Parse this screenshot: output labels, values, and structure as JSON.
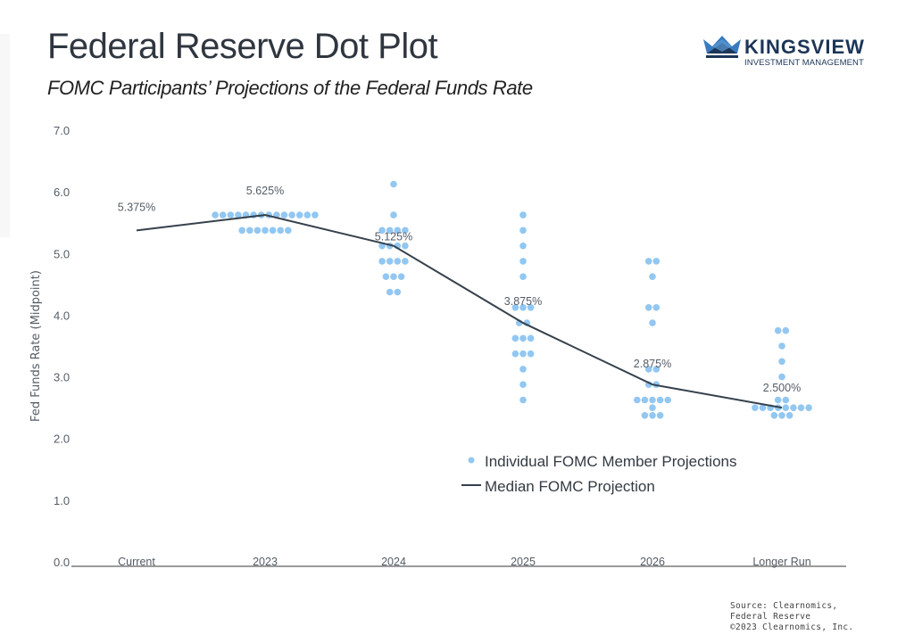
{
  "header": {
    "title": "Federal Reserve Dot Plot",
    "subtitle": "FOMC Participants’ Projections of the Federal Funds Rate"
  },
  "logo": {
    "name": "KINGSVIEW",
    "tagline": "INVESTMENT MANAGEMENT",
    "icon": "crown-icon",
    "colors": {
      "light": "#3a7bbf",
      "dark": "#1d3557"
    }
  },
  "source": {
    "lines": [
      "Source: Clearnomics,",
      "Federal Reserve",
      "©2023 Clearnomics, Inc."
    ]
  },
  "colors": {
    "dot": "#92c7f1",
    "median_line": "#36414d",
    "axis": "#7a7a7a",
    "text": "#555c66"
  },
  "chart_data": {
    "type": "scatter",
    "title": "Federal Reserve Dot Plot",
    "subtitle": "FOMC Participants’ Projections of the Federal Funds Rate",
    "xlabel": "",
    "ylabel": "Fed Funds Rate (Midpoint)",
    "ylim": [
      0,
      7
    ],
    "yticks": [
      "0.0",
      "1.0",
      "2.0",
      "3.0",
      "4.0",
      "5.0",
      "6.0",
      "7.0"
    ],
    "categories": [
      "Current",
      "2023",
      "2024",
      "2025",
      "2026",
      "Longer Run"
    ],
    "grid": false,
    "legend_position": "bottom-right",
    "series": [
      {
        "name": "Individual FOMC Member Projections",
        "kind": "dots",
        "values": [
          [],
          [
            {
              "rate": 5.625,
              "count": 14
            },
            {
              "rate": 5.375,
              "count": 7
            }
          ],
          [
            {
              "rate": 6.125,
              "count": 1
            },
            {
              "rate": 5.625,
              "count": 1
            },
            {
              "rate": 5.375,
              "count": 4
            },
            {
              "rate": 5.125,
              "count": 4
            },
            {
              "rate": 4.875,
              "count": 4
            },
            {
              "rate": 4.625,
              "count": 3
            },
            {
              "rate": 4.375,
              "count": 2
            }
          ],
          [
            {
              "rate": 5.625,
              "count": 1
            },
            {
              "rate": 5.375,
              "count": 1
            },
            {
              "rate": 5.125,
              "count": 1
            },
            {
              "rate": 4.875,
              "count": 1
            },
            {
              "rate": 4.625,
              "count": 1
            },
            {
              "rate": 4.125,
              "count": 3
            },
            {
              "rate": 3.875,
              "count": 2
            },
            {
              "rate": 3.625,
              "count": 3
            },
            {
              "rate": 3.375,
              "count": 3
            },
            {
              "rate": 3.125,
              "count": 1
            },
            {
              "rate": 2.875,
              "count": 1
            },
            {
              "rate": 2.625,
              "count": 1
            }
          ],
          [
            {
              "rate": 4.875,
              "count": 2
            },
            {
              "rate": 4.625,
              "count": 1
            },
            {
              "rate": 4.125,
              "count": 2
            },
            {
              "rate": 3.875,
              "count": 1
            },
            {
              "rate": 3.125,
              "count": 2
            },
            {
              "rate": 2.875,
              "count": 2
            },
            {
              "rate": 2.625,
              "count": 5
            },
            {
              "rate": 2.5,
              "count": 1
            },
            {
              "rate": 2.375,
              "count": 3
            }
          ],
          [
            {
              "rate": 3.75,
              "count": 2
            },
            {
              "rate": 3.5,
              "count": 1
            },
            {
              "rate": 3.25,
              "count": 1
            },
            {
              "rate": 3.0,
              "count": 1
            },
            {
              "rate": 2.625,
              "count": 2
            },
            {
              "rate": 2.5,
              "count": 8
            },
            {
              "rate": 2.375,
              "count": 3
            }
          ]
        ]
      },
      {
        "name": "Median FOMC Projection",
        "kind": "line",
        "values": [
          5.375,
          5.625,
          5.125,
          3.875,
          2.875,
          2.5
        ],
        "labels": [
          "5.375%",
          "5.625%",
          "5.125%",
          "3.875%",
          "2.875%",
          "2.500%"
        ]
      }
    ]
  }
}
